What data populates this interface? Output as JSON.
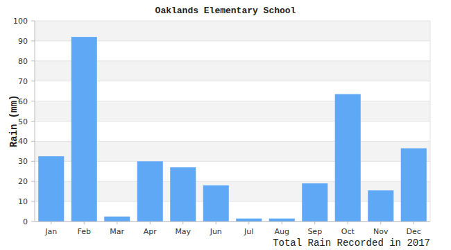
{
  "chart_data": {
    "type": "bar",
    "title": "Oaklands Elementary School",
    "x_label": "Total Rain Recorded in 2017",
    "y_label": "Rain (mm)",
    "categories": [
      "Jan",
      "Feb",
      "Mar",
      "Apr",
      "May",
      "Jun",
      "Jul",
      "Aug",
      "Sep",
      "Oct",
      "Nov",
      "Dec"
    ],
    "values": [
      32.5,
      92,
      2.5,
      30,
      27,
      18,
      1.5,
      1.5,
      19,
      63.5,
      15.5,
      36.5
    ],
    "color": "#5fa8f5",
    "ylim": [
      0,
      100
    ],
    "yticks": [
      0,
      10,
      20,
      30,
      40,
      50,
      60,
      70,
      80,
      90,
      100
    ],
    "grid": true
  }
}
